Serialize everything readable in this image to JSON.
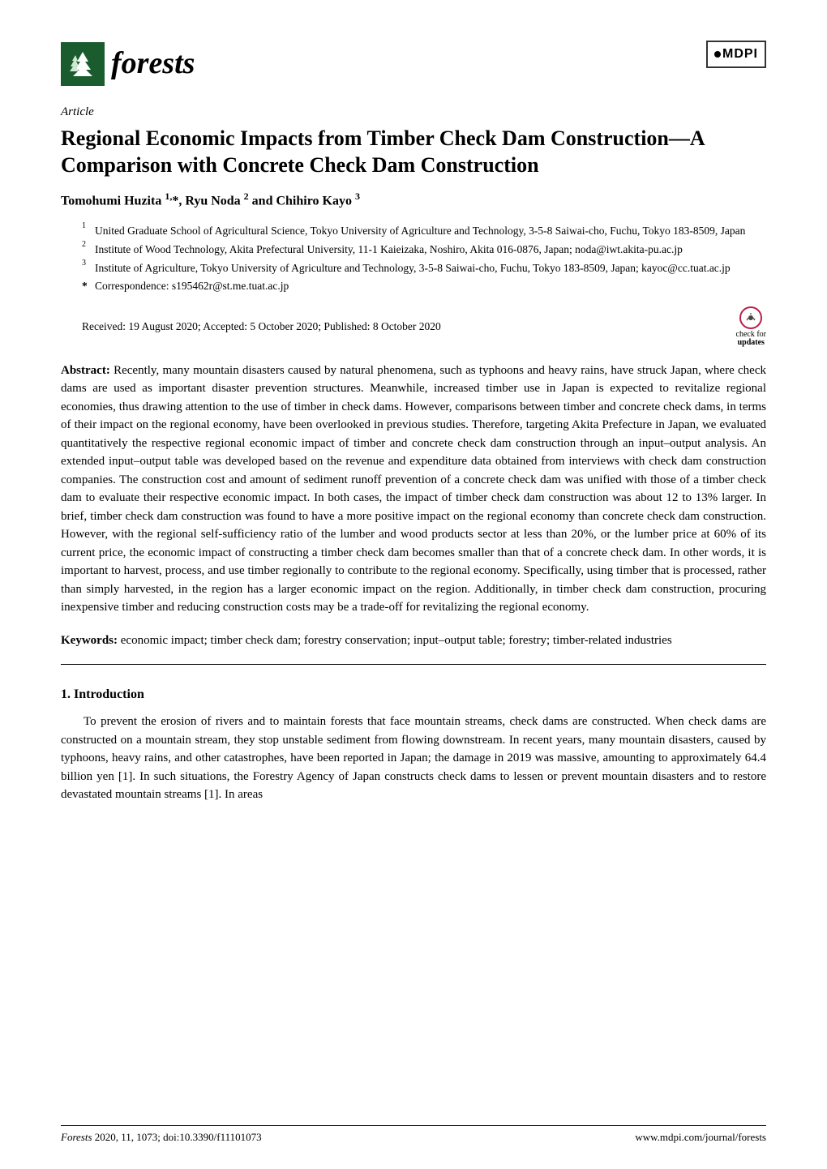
{
  "header": {
    "journal_name": "forests",
    "publisher": "MDPI",
    "logo_bg_color": "#1a5c2d",
    "logo_tree_color": "#ffffff"
  },
  "article": {
    "type": "Article",
    "title": "Regional Economic Impacts from Timber Check Dam Construction—A Comparison with Concrete Check Dam Construction",
    "authors_html": "Tomohumi Huzita <sup>1,</sup>*, Ryu Noda <sup>2</sup> and Chihiro Kayo <sup>3</sup>"
  },
  "affiliations": [
    {
      "num": "1",
      "text": "United Graduate School of Agricultural Science, Tokyo University of Agriculture and Technology, 3-5-8 Saiwai-cho, Fuchu, Tokyo 183-8509, Japan"
    },
    {
      "num": "2",
      "text": "Institute of Wood Technology, Akita Prefectural University, 11-1 Kaieizaka, Noshiro, Akita 016-0876, Japan; noda@iwt.akita-pu.ac.jp"
    },
    {
      "num": "3",
      "text": "Institute of Agriculture, Tokyo University of Agriculture and Technology, 3-5-8 Saiwai-cho, Fuchu, Tokyo 183-8509, Japan; kayoc@cc.tuat.ac.jp"
    }
  ],
  "correspondence": {
    "symbol": "*",
    "text": "Correspondence: s195462r@st.me.tuat.ac.jp"
  },
  "dates": "Received: 19 August 2020; Accepted: 5 October 2020; Published: 8 October 2020",
  "check_updates": {
    "line1": "check for",
    "line2": "updates",
    "circle_color": "#bb1e4a",
    "check_color": "#444444"
  },
  "abstract": {
    "label": "Abstract:",
    "text": " Recently, many mountain disasters caused by natural phenomena, such as typhoons and heavy rains, have struck Japan, where check dams are used as important disaster prevention structures. Meanwhile, increased timber use in Japan is expected to revitalize regional economies, thus drawing attention to the use of timber in check dams. However, comparisons between timber and concrete check dams, in terms of their impact on the regional economy, have been overlooked in previous studies. Therefore, targeting Akita Prefecture in Japan, we evaluated quantitatively the respective regional economic impact of timber and concrete check dam construction through an input–output analysis. An extended input–output table was developed based on the revenue and expenditure data obtained from interviews with check dam construction companies. The construction cost and amount of sediment runoff prevention of a concrete check dam was unified with those of a timber check dam to evaluate their respective economic impact. In both cases, the impact of timber check dam construction was about 12 to 13% larger. In brief, timber check dam construction was found to have a more positive impact on the regional economy than concrete check dam construction. However, with the regional self-sufficiency ratio of the lumber and wood products sector at less than 20%, or the lumber price at 60% of its current price, the economic impact of constructing a timber check dam becomes smaller than that of a concrete check dam. In other words, it is important to harvest, process, and use timber regionally to contribute to the regional economy. Specifically, using timber that is processed, rather than simply harvested, in the region has a larger economic impact on the region. Additionally, in timber check dam construction, procuring inexpensive timber and reducing construction costs may be a trade-off for revitalizing the regional economy."
  },
  "keywords": {
    "label": "Keywords:",
    "text": " economic impact; timber check dam; forestry conservation; input–output table; forestry; timber-related industries"
  },
  "sections": {
    "intro_header": "1. Introduction",
    "intro_text": "To prevent the erosion of rivers and to maintain forests that face mountain streams, check dams are constructed. When check dams are constructed on a mountain stream, they stop unstable sediment from flowing downstream. In recent years, many mountain disasters, caused by typhoons, heavy rains, and other catastrophes, have been reported in Japan; the damage in 2019 was massive, amounting to approximately 64.4 billion yen [1]. In such situations, the Forestry Agency of Japan constructs check dams to lessen or prevent mountain disasters and to restore devastated mountain streams [1]. In areas"
  },
  "footer": {
    "left_journal": "Forests",
    "left_rest": " 2020, 11, 1073; doi:10.3390/f11101073",
    "right": "www.mdpi.com/journal/forests"
  },
  "styling": {
    "page_bg": "#ffffff",
    "text_color": "#000000",
    "title_fontsize": 26,
    "body_fontsize": 15,
    "affiliation_fontsize": 13.5
  }
}
